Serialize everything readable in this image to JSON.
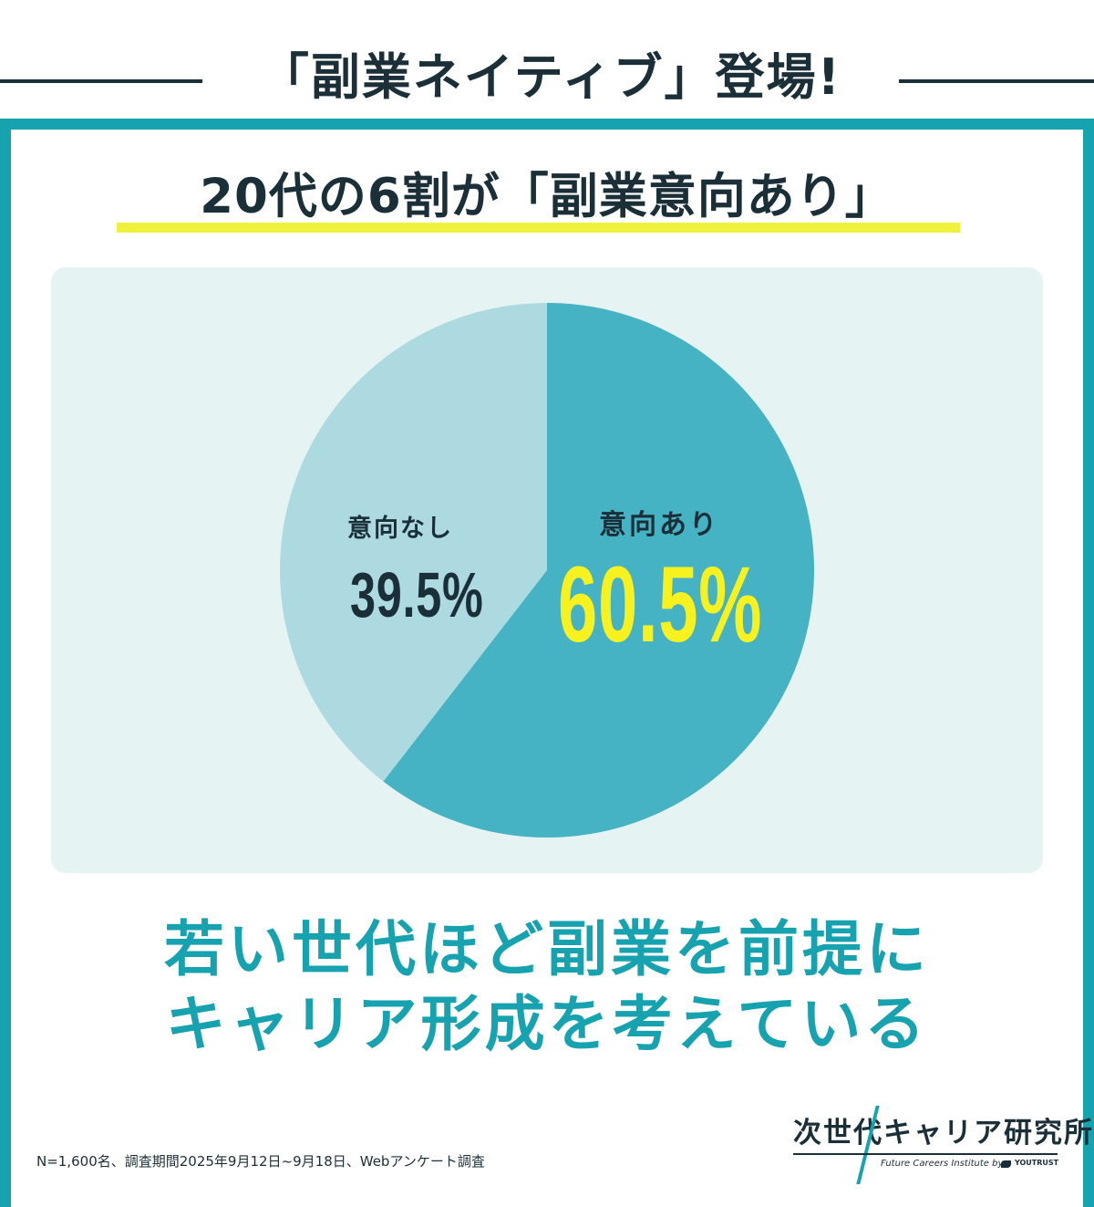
{
  "header": {
    "title": "「副業ネイティブ」登場!"
  },
  "headline": "20代の6割が「副業意向あり」",
  "chart_data": {
    "type": "pie",
    "slices": [
      {
        "label": "意向あり",
        "value": 60.5,
        "display": "60.5%",
        "color": "#45b3c3"
      },
      {
        "label": "意向なし",
        "value": 39.5,
        "display": "39.5%",
        "color": "#acdae0"
      }
    ],
    "start": "12 o'clock",
    "direction": "clockwise"
  },
  "conclusion": {
    "line1": "若い世代ほど副業を前提に",
    "line2": "キャリア形成を考えている"
  },
  "footnote": "N=1,600名、調査期間2025年9月12日~9月18日、Webアンケート調査",
  "brand": {
    "name": "次世代キャリア研究所",
    "sub": "Future Careers Institute by",
    "partner": "YOUTRUST"
  },
  "colors": {
    "accent": "#17a2b0",
    "text": "#1b2f38",
    "highlight": "#f7f21f",
    "panel": "#e6f3f3"
  }
}
